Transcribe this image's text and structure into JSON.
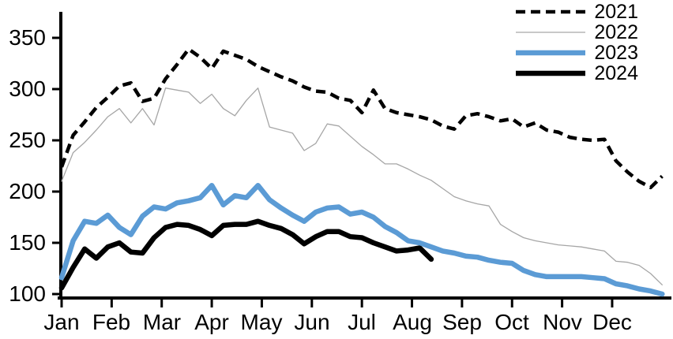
{
  "chart_data": {
    "type": "line",
    "title": "",
    "x_unit": "weekly points spanning Jan 1 to Dec 31",
    "months": [
      "Jan",
      "Feb",
      "Mar",
      "Apr",
      "May",
      "Jun",
      "Jul",
      "Aug",
      "Sep",
      "Oct",
      "Nov",
      "Dec"
    ],
    "y_axis": {
      "tick_labels": [
        350,
        300,
        250,
        200,
        150,
        100
      ],
      "range": [
        100,
        350
      ],
      "grid": false
    },
    "legend": {
      "position": "top-right"
    },
    "series": [
      {
        "name": "2021",
        "style": "dashed",
        "color": "#000000",
        "width": 4.5,
        "values": [
          224,
          255,
          268,
          282,
          292,
          303,
          306,
          288,
          291,
          310,
          324,
          339,
          331,
          320,
          337,
          333,
          329,
          322,
          317,
          312,
          308,
          302,
          298,
          297,
          291,
          289,
          277,
          299,
          281,
          277,
          275,
          273,
          270,
          264,
          261,
          274,
          276,
          273,
          269,
          271,
          263,
          267,
          260,
          258,
          253,
          251,
          250,
          251,
          230,
          219,
          210,
          204,
          215
        ]
      },
      {
        "name": "2022",
        "style": "solid",
        "color": "#a6a6a6",
        "width": 1.3,
        "values": [
          210,
          238,
          248,
          260,
          273,
          281,
          267,
          281,
          265,
          301,
          299,
          297,
          286,
          295,
          281,
          274,
          289,
          301,
          263,
          260,
          257,
          240,
          247,
          266,
          264,
          254,
          244,
          236,
          227,
          227,
          222,
          216,
          211,
          203,
          195,
          191,
          188,
          186,
          168,
          161,
          155,
          152,
          150,
          148,
          147,
          146,
          144,
          142,
          132,
          131,
          128,
          120,
          109
        ]
      },
      {
        "name": "2023",
        "style": "solid",
        "color": "#5b9bd5",
        "width": 6.5,
        "values": [
          116,
          152,
          171,
          169,
          177,
          165,
          158,
          176,
          185,
          183,
          189,
          191,
          194,
          206,
          187,
          196,
          194,
          206,
          192,
          184,
          177,
          171,
          180,
          184,
          185,
          178,
          180,
          175,
          166,
          160,
          152,
          150,
          146,
          142,
          140,
          137,
          136,
          133,
          131,
          130,
          123,
          119,
          117,
          117,
          117,
          117,
          116,
          115,
          110,
          108,
          105,
          103,
          100
        ]
      },
      {
        "name": "2024",
        "style": "solid",
        "color": "#000000",
        "width": 6.5,
        "values": [
          106,
          126,
          144,
          135,
          146,
          150,
          141,
          140,
          155,
          165,
          168,
          167,
          163,
          157,
          167,
          168,
          168,
          171,
          167,
          164,
          158,
          149,
          156,
          161,
          161,
          156,
          155,
          150,
          146,
          142,
          143,
          145,
          134
        ]
      }
    ]
  }
}
